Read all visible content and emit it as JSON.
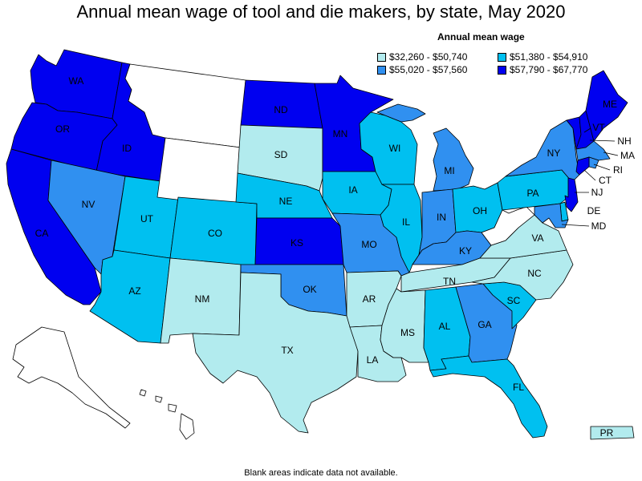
{
  "title": "Annual mean wage of tool and die makers, by state, May 2020",
  "legend": {
    "title": "Annual mean wage",
    "items": [
      {
        "label": "$32,260 - $50,740",
        "color": "#b2ebee"
      },
      {
        "label": "$51,380 - $54,910",
        "color": "#00c0f0"
      },
      {
        "label": "$55,020 - $57,560",
        "color": "#3090f0"
      },
      {
        "label": "$57,790 - $67,770",
        "color": "#0000f0"
      }
    ]
  },
  "footnote": "Blank areas indicate data not available.",
  "colors": {
    "c1": "#b2ebee",
    "c2": "#00c0f0",
    "c3": "#3090f0",
    "c4": "#0000f0",
    "none": "#ffffff"
  },
  "states": {
    "WA": "c4",
    "OR": "c4",
    "ID": "c4",
    "CA": "c4",
    "NV": "c3",
    "UT": "c2",
    "AZ": "c2",
    "MT": "none",
    "WY": "none",
    "CO": "c2",
    "NM": "c1",
    "ND": "c4",
    "SD": "c1",
    "NE": "c2",
    "KS": "c4",
    "OK": "c3",
    "TX": "c1",
    "MN": "c4",
    "IA": "c2",
    "MO": "c3",
    "AR": "c1",
    "LA": "c1",
    "WI": "c2",
    "IL": "c2",
    "MI": "c3",
    "IN": "c3",
    "OH": "c2",
    "KY": "c3",
    "TN": "c1",
    "MS": "c1",
    "AL": "c2",
    "GA": "c3",
    "FL": "c2",
    "SC": "c2",
    "NC": "c1",
    "VA": "c1",
    "WV": "none",
    "PA": "c2",
    "NY": "c3",
    "VT": "c4",
    "NH": "c4",
    "ME": "c4",
    "MA": "c3",
    "RI": "c3",
    "CT": "c4",
    "NJ": "c4",
    "DE": "c2",
    "MD": "c3",
    "AK": "none",
    "HI": "none",
    "PR": "c1"
  },
  "labels": {
    "WA": "WA",
    "OR": "OR",
    "ID": "ID",
    "CA": "CA",
    "NV": "NV",
    "UT": "UT",
    "AZ": "AZ",
    "CO": "CO",
    "NM": "NM",
    "ND": "ND",
    "SD": "SD",
    "NE": "NE",
    "KS": "KS",
    "OK": "OK",
    "TX": "TX",
    "MN": "MN",
    "IA": "IA",
    "MO": "MO",
    "AR": "AR",
    "LA": "LA",
    "WI": "WI",
    "IL": "IL",
    "MI": "MI",
    "IN": "IN",
    "OH": "OH",
    "KY": "KY",
    "TN": "TN",
    "MS": "MS",
    "AL": "AL",
    "GA": "GA",
    "FL": "FL",
    "SC": "SC",
    "NC": "NC",
    "VA": "VA",
    "PA": "PA",
    "NY": "NY",
    "VT": "VT",
    "NH": "NH",
    "ME": "ME",
    "MA": "MA",
    "RI": "RI",
    "CT": "CT",
    "NJ": "NJ",
    "DE": "DE",
    "MD": "MD",
    "PR": "PR"
  }
}
